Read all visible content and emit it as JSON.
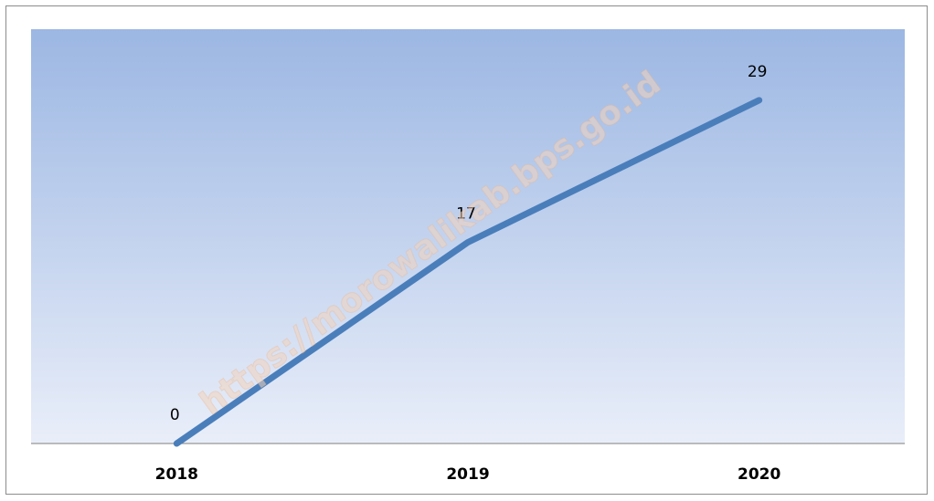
{
  "chart_data": {
    "type": "line",
    "categories": [
      "2018",
      "2019",
      "2020"
    ],
    "values": [
      0,
      17,
      29
    ],
    "color": "#4a7ebb",
    "ylim": [
      0,
      35
    ],
    "watermark": "https://morowalikab.bps.go.id"
  }
}
